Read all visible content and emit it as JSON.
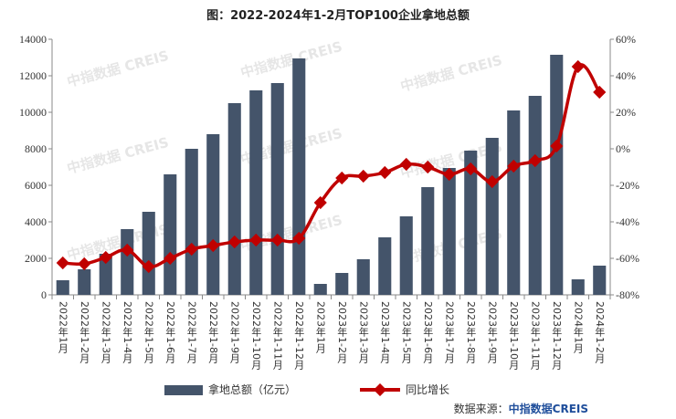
{
  "chart_data": {
    "type": "bar+line",
    "title": "图：2022-2024年1-2月TOP100企业拿地总额",
    "categories": [
      "2022年1月",
      "2022年1-2月",
      "2022年1-3月",
      "2022年1-4月",
      "2022年1-5月",
      "2022年1-6月",
      "2022年1-7月",
      "2022年1-8月",
      "2022年1-9月",
      "2022年1-10月",
      "2022年1-11月",
      "2022年1-12月",
      "2023年1月",
      "2023年1-2月",
      "2023年1-3月",
      "2023年1-4月",
      "2023年1-5月",
      "2023年1-6月",
      "2023年1-7月",
      "2023年1-8月",
      "2023年1-9月",
      "2023年1-10月",
      "2023年1-11月",
      "2023年1-12月",
      "2024年1月",
      "2024年1-2月"
    ],
    "series": [
      {
        "name": "拿地总额（亿元）",
        "type": "bar",
        "axis": "left",
        "color": "#44546a",
        "values": [
          800,
          1400,
          2250,
          3600,
          4550,
          6600,
          8000,
          8800,
          10500,
          11200,
          11600,
          12950,
          600,
          1200,
          1950,
          3150,
          4300,
          5900,
          6950,
          7900,
          8600,
          10100,
          10900,
          13150,
          850,
          1600
        ]
      },
      {
        "name": "同比增长",
        "type": "line",
        "axis": "right",
        "color": "#c00000",
        "values": [
          -62.5,
          -63,
          -59.5,
          -55.5,
          -64.5,
          -60,
          -55,
          -53,
          -51,
          -50,
          -50,
          -49,
          -29.5,
          -16,
          -15,
          -13,
          -8.5,
          -10,
          -14,
          -11,
          -18,
          -9.5,
          -6.5,
          1.5,
          45,
          31
        ]
      }
    ],
    "ylim_left": [
      0,
      14000
    ],
    "yticks_left": [
      "0",
      "2000",
      "4000",
      "6000",
      "8000",
      "10000",
      "12000",
      "14000"
    ],
    "ylim_right": [
      -80,
      60
    ],
    "yticks_right": [
      "-80%",
      "-60%",
      "-40%",
      "-20%",
      "0%",
      "20%",
      "40%",
      "60%"
    ],
    "legend_position": "bottom",
    "grid": false
  },
  "watermark": "中指数据 CREIS",
  "source": {
    "label": "数据来源：",
    "brand": "中指数据CREIS"
  }
}
